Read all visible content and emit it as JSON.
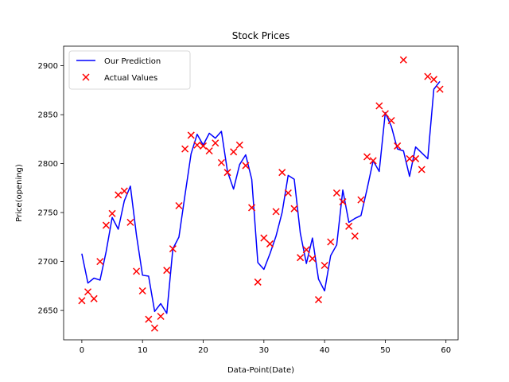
{
  "chart_data": {
    "type": "line",
    "title": "Stock Prices",
    "xlabel": "Data-Point(Date)",
    "ylabel": "Price(opening)",
    "xlim": [
      -3,
      62
    ],
    "ylim": [
      2620,
      2920
    ],
    "xticks": [
      0,
      10,
      20,
      30,
      40,
      50,
      60
    ],
    "yticks": [
      2650,
      2700,
      2750,
      2800,
      2850,
      2900
    ],
    "grid": false,
    "legend_position": "top-left",
    "x": [
      0,
      1,
      2,
      3,
      4,
      5,
      6,
      7,
      8,
      9,
      10,
      11,
      12,
      13,
      14,
      15,
      16,
      17,
      18,
      19,
      20,
      21,
      22,
      23,
      24,
      25,
      26,
      27,
      28,
      29,
      30,
      31,
      32,
      33,
      34,
      35,
      36,
      37,
      38,
      39,
      40,
      41,
      42,
      43,
      44,
      45,
      46,
      47,
      48,
      49,
      50,
      51,
      52,
      53,
      54,
      55,
      56,
      57,
      58,
      59
    ],
    "series": [
      {
        "name": "Our Prediction",
        "kind": "line",
        "color": "#0000ff",
        "values": [
          2708,
          2678,
          2683,
          2681,
          2710,
          2745,
          2733,
          2762,
          2777,
          2727,
          2686,
          2685,
          2649,
          2657,
          2647,
          2713,
          2725,
          2768,
          2810,
          2830,
          2819,
          2831,
          2826,
          2833,
          2792,
          2774,
          2799,
          2809,
          2784,
          2699,
          2692,
          2708,
          2726,
          2750,
          2788,
          2784,
          2729,
          2698,
          2724,
          2682,
          2670,
          2706,
          2717,
          2773,
          2740,
          2744,
          2747,
          2774,
          2803,
          2792,
          2852,
          2838,
          2815,
          2813,
          2787,
          2817,
          2811,
          2805,
          2876,
          2884
        ]
      },
      {
        "name": "Actual Values",
        "kind": "scatter",
        "color": "#ff0000",
        "values": [
          2660,
          2669,
          2662,
          2700,
          2737,
          2749,
          2768,
          2772,
          2740,
          2690,
          2670,
          2641,
          2632,
          2644,
          2691,
          2713,
          2757,
          2815,
          2829,
          2819,
          2818,
          2813,
          2821,
          2801,
          2791,
          2812,
          2819,
          2798,
          2755,
          2679,
          2724,
          2718,
          2751,
          2791,
          2770,
          2754,
          2704,
          2712,
          2703,
          2661,
          2696,
          2720,
          2770,
          2761,
          2736,
          2726,
          2763,
          2807,
          2803,
          2859,
          2851,
          2844,
          2818,
          2906,
          2805,
          2805,
          2794,
          2889,
          2886,
          2876
        ]
      }
    ]
  }
}
